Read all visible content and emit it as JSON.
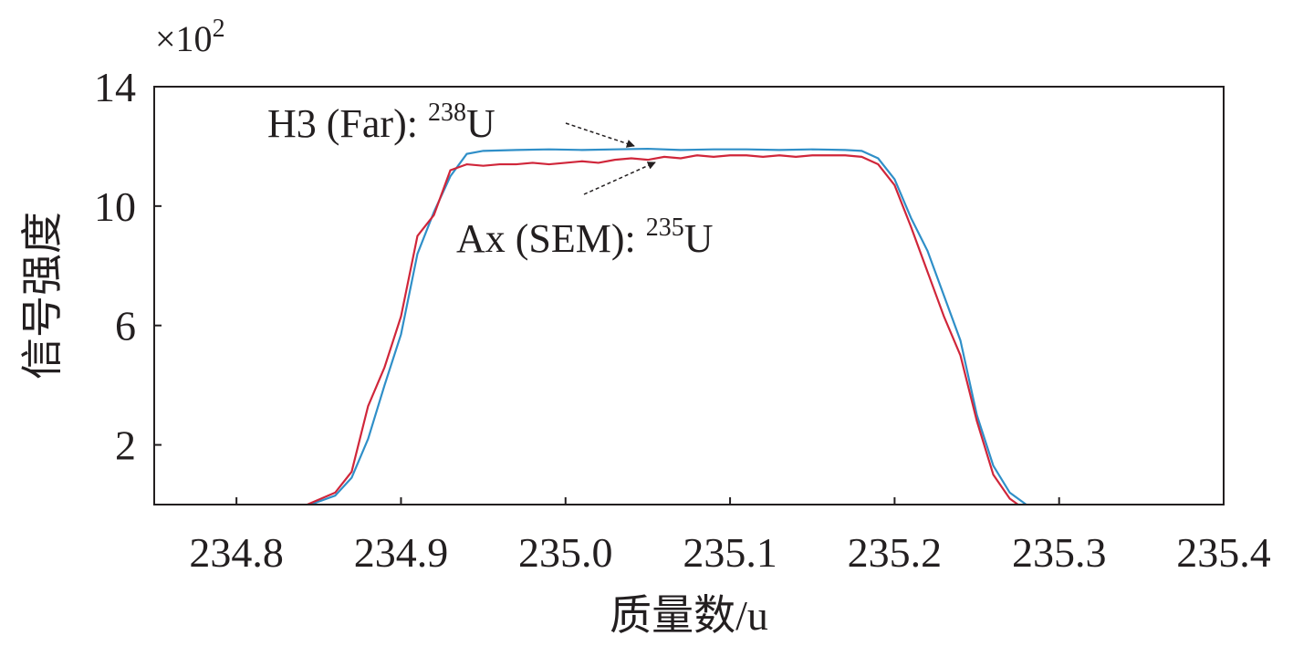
{
  "chart_data": {
    "type": "line",
    "y_multiplier": {
      "base": "×10",
      "exp": "2"
    },
    "x_label": "质量数/u",
    "y_label": "信号强度",
    "xlim": [
      234.75,
      235.4
    ],
    "xticks": [
      234.8,
      234.9,
      {
        "value": 235.0,
        "label": "235.0"
      },
      235.1,
      235.2,
      235.3,
      235.4
    ],
    "ylim": [
      0,
      14
    ],
    "yticks": [
      2,
      6,
      10,
      14
    ],
    "series": [
      {
        "color": "#2f8fc8",
        "x": [
          234.845,
          234.86,
          234.87,
          234.88,
          234.89,
          234.9,
          234.91,
          234.92,
          234.93,
          234.94,
          234.95,
          234.97,
          234.99,
          235.01,
          235.03,
          235.05,
          235.07,
          235.09,
          235.11,
          235.13,
          235.15,
          235.17,
          235.18,
          235.19,
          235.2,
          235.21,
          235.22,
          235.23,
          235.24,
          235.25,
          235.26,
          235.27,
          235.28
        ],
        "values": [
          0,
          0.3,
          0.9,
          2.2,
          4.0,
          5.7,
          8.4,
          9.8,
          11.0,
          11.75,
          11.85,
          11.88,
          11.9,
          11.88,
          11.9,
          11.92,
          11.88,
          11.9,
          11.9,
          11.88,
          11.9,
          11.88,
          11.85,
          11.6,
          10.9,
          9.6,
          8.5,
          7.0,
          5.5,
          3.0,
          1.3,
          0.4,
          0
        ]
      },
      {
        "color": "#d0263a",
        "x": [
          234.843,
          234.86,
          234.87,
          234.88,
          234.89,
          234.9,
          234.91,
          234.92,
          234.93,
          234.94,
          234.95,
          234.96,
          234.97,
          234.98,
          234.99,
          235.0,
          235.01,
          235.02,
          235.03,
          235.04,
          235.05,
          235.06,
          235.07,
          235.08,
          235.09,
          235.1,
          235.11,
          235.12,
          235.13,
          235.14,
          235.15,
          235.16,
          235.17,
          235.18,
          235.19,
          235.2,
          235.21,
          235.22,
          235.23,
          235.24,
          235.25,
          235.26,
          235.27,
          235.275
        ],
        "values": [
          0,
          0.4,
          1.1,
          3.3,
          4.6,
          6.3,
          9.0,
          9.7,
          11.2,
          11.4,
          11.35,
          11.4,
          11.4,
          11.45,
          11.4,
          11.45,
          11.5,
          11.45,
          11.55,
          11.6,
          11.55,
          11.65,
          11.6,
          11.7,
          11.65,
          11.7,
          11.7,
          11.65,
          11.7,
          11.65,
          11.7,
          11.7,
          11.7,
          11.65,
          11.4,
          10.7,
          9.3,
          7.8,
          6.3,
          5.0,
          2.8,
          1.0,
          0.2,
          0
        ]
      }
    ],
    "annotations": [
      {
        "prefix": "H3 (Far): ",
        "sup": "238",
        "suffix": "U"
      },
      {
        "prefix": "Ax (SEM): ",
        "sup": "235",
        "suffix": "U"
      }
    ]
  }
}
